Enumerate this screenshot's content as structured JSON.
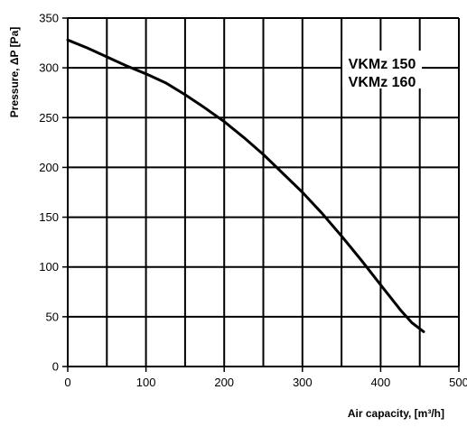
{
  "chart_data": {
    "type": "line",
    "xlabel": "Air capacity, [m³/h]",
    "ylabel": "Pressure, ΔP [Pa]",
    "xlim": [
      0,
      500
    ],
    "ylim": [
      0,
      350
    ],
    "xticks": [
      0,
      100,
      200,
      300,
      400,
      500
    ],
    "yticks": [
      0,
      50,
      100,
      150,
      200,
      250,
      300,
      350
    ],
    "x_gridlines": [
      0,
      50,
      100,
      150,
      200,
      250,
      300,
      350,
      400,
      450,
      500
    ],
    "y_gridlines": [
      0,
      50,
      100,
      150,
      200,
      250,
      300,
      350
    ],
    "grid": true,
    "annotation_lines": [
      "VKMz 150",
      "VKMz 160"
    ],
    "series": [
      {
        "color": "#000000",
        "x": [
          0,
          25,
          50,
          75,
          100,
          125,
          150,
          175,
          200,
          225,
          250,
          275,
          300,
          325,
          350,
          375,
          400,
          425,
          440,
          455
        ],
        "y": [
          328,
          320,
          311,
          302,
          294,
          285,
          273,
          260,
          246,
          230,
          213,
          194,
          175,
          154,
          131,
          107,
          82,
          57,
          44,
          35
        ]
      }
    ]
  }
}
